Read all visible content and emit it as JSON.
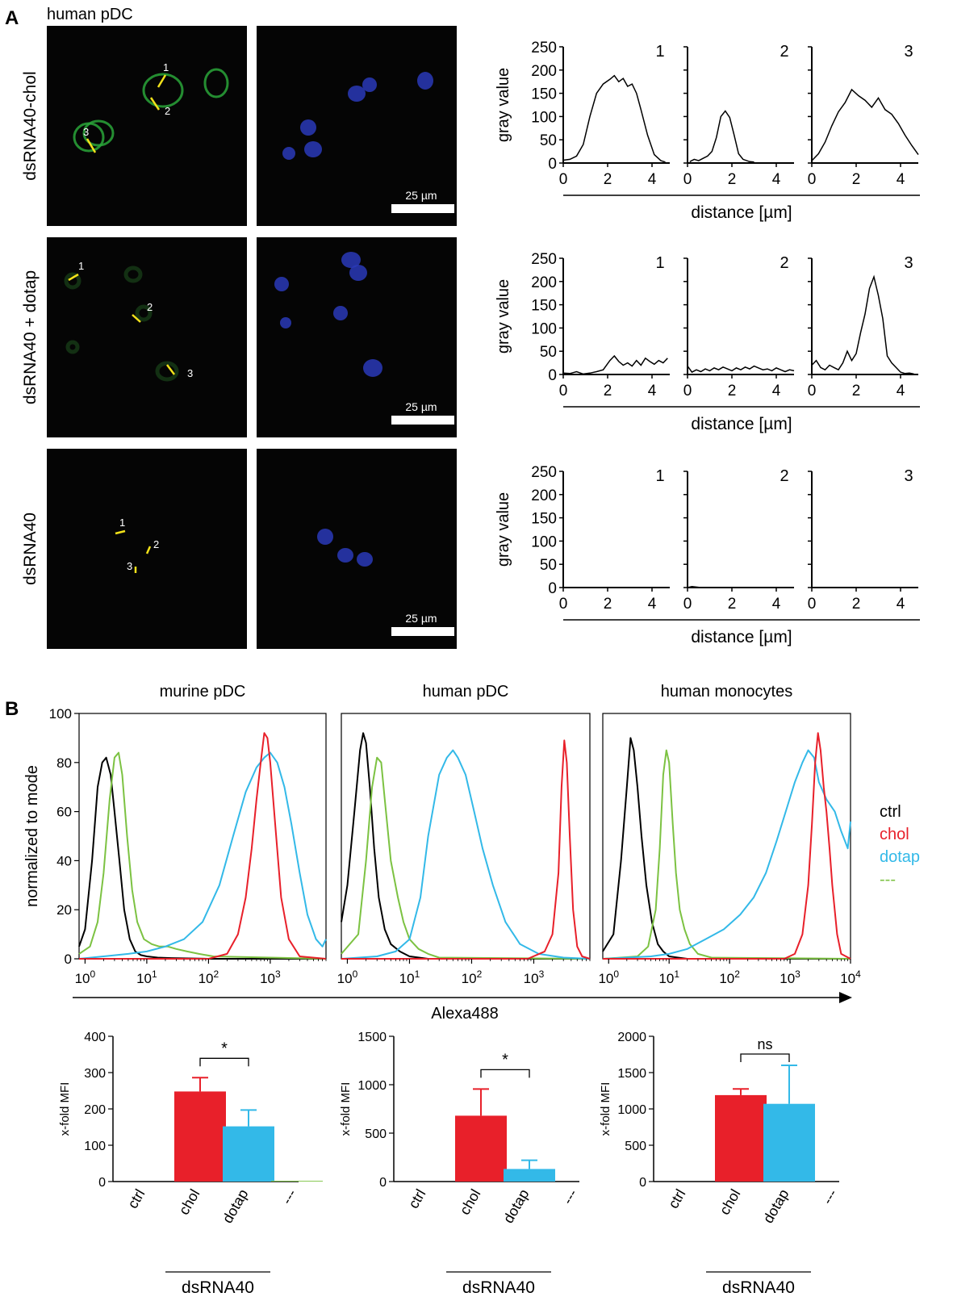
{
  "panel_a": {
    "letter": "A",
    "cell_type": "human pDC",
    "scale_label": "25 µm",
    "rows": [
      {
        "label": "dsRNA40-chol",
        "line_labels": [
          "1",
          "2",
          "3"
        ]
      },
      {
        "label": "dsRNA40 + dotap",
        "line_labels": [
          "1",
          "2",
          "3"
        ]
      },
      {
        "label": "dsRNA40",
        "line_labels": [
          "1",
          "2",
          "3"
        ]
      }
    ],
    "profile_ylabel": "gray value",
    "profile_xlabel": "distance [µm]",
    "profile_yticks": [
      "0",
      "50",
      "100",
      "150",
      "200",
      "250"
    ],
    "profile_xticks": [
      "0",
      "2",
      "4"
    ]
  },
  "panel_b": {
    "letter": "B",
    "hist_titles": [
      "murine pDC",
      "human pDC",
      "human monocytes"
    ],
    "hist_ylabel": "normalized to mode",
    "hist_xlabel": "Alexa488",
    "hist_yticks": [
      "0",
      "20",
      "40",
      "60",
      "80",
      "100"
    ],
    "legend": [
      {
        "label": "ctrl",
        "color": "#000000"
      },
      {
        "label": "chol",
        "color": "#e8202a"
      },
      {
        "label": "dotap",
        "color": "#33b9e8"
      },
      {
        "label": "---",
        "color": "#7cc242"
      }
    ],
    "bar_ylabel": "x-fold MFI",
    "bar_group_label": "dsRNA40"
  },
  "chart_data": [
    {
      "type": "line",
      "title": "1",
      "row": "dsRNA40-chol",
      "xlabel": "distance [µm]",
      "ylabel": "gray value",
      "xlim": [
        0,
        4.8
      ],
      "ylim": [
        0,
        250
      ],
      "x": [
        0,
        0.3,
        0.6,
        0.9,
        1.2,
        1.5,
        1.8,
        2.1,
        2.3,
        2.5,
        2.7,
        2.9,
        3.1,
        3.3,
        3.5,
        3.8,
        4.1,
        4.4,
        4.6
      ],
      "y": [
        6,
        8,
        15,
        40,
        100,
        150,
        170,
        180,
        188,
        175,
        182,
        165,
        170,
        150,
        115,
        60,
        18,
        5,
        2
      ]
    },
    {
      "type": "line",
      "title": "2",
      "row": "dsRNA40-chol",
      "xlabel": "distance [µm]",
      "ylabel": "gray value",
      "xlim": [
        0,
        4.8
      ],
      "ylim": [
        0,
        250
      ],
      "x": [
        0.1,
        0.3,
        0.5,
        0.7,
        0.9,
        1.1,
        1.3,
        1.5,
        1.7,
        1.9,
        2.1,
        2.3,
        2.5,
        2.8,
        3.0
      ],
      "y": [
        3,
        8,
        5,
        10,
        15,
        25,
        55,
        100,
        112,
        98,
        60,
        20,
        8,
        3,
        2
      ]
    },
    {
      "type": "line",
      "title": "3",
      "row": "dsRNA40-chol",
      "xlabel": "distance [µm]",
      "ylabel": "gray value",
      "xlim": [
        0,
        4.8
      ],
      "ylim": [
        0,
        250
      ],
      "x": [
        0,
        0.3,
        0.6,
        0.9,
        1.2,
        1.5,
        1.8,
        2.1,
        2.4,
        2.7,
        3.0,
        3.3,
        3.6,
        3.9,
        4.2,
        4.5,
        4.8
      ],
      "y": [
        5,
        20,
        45,
        80,
        110,
        130,
        158,
        145,
        135,
        120,
        140,
        115,
        105,
        85,
        60,
        38,
        18
      ]
    },
    {
      "type": "line",
      "title": "1",
      "row": "dsRNA40 + dotap",
      "xlabel": "distance [µm]",
      "ylabel": "gray value",
      "xlim": [
        0,
        4.8
      ],
      "ylim": [
        0,
        250
      ],
      "x": [
        0,
        0.3,
        0.6,
        0.9,
        1.2,
        1.5,
        1.8,
        2.1,
        2.3,
        2.5,
        2.7,
        2.9,
        3.1,
        3.3,
        3.5,
        3.7,
        3.9,
        4.1,
        4.3,
        4.5,
        4.7
      ],
      "y": [
        3,
        2,
        6,
        1,
        3,
        6,
        10,
        30,
        40,
        28,
        20,
        25,
        18,
        30,
        20,
        35,
        28,
        22,
        30,
        25,
        35
      ]
    },
    {
      "type": "line",
      "title": "2",
      "row": "dsRNA40 + dotap",
      "xlabel": "distance [µm]",
      "ylabel": "gray value",
      "xlim": [
        0,
        4.8
      ],
      "ylim": [
        0,
        250
      ],
      "x": [
        0,
        0.2,
        0.4,
        0.6,
        0.8,
        1.0,
        1.2,
        1.4,
        1.6,
        1.8,
        2.0,
        2.2,
        2.4,
        2.6,
        2.8,
        3.0,
        3.2,
        3.4,
        3.6,
        3.8,
        4.0,
        4.2,
        4.4,
        4.6,
        4.8
      ],
      "y": [
        18,
        5,
        10,
        6,
        12,
        8,
        14,
        10,
        16,
        12,
        8,
        14,
        10,
        16,
        12,
        18,
        14,
        10,
        12,
        8,
        14,
        10,
        6,
        10,
        8
      ]
    },
    {
      "type": "line",
      "title": "3",
      "row": "dsRNA40 + dotap",
      "xlabel": "distance [µm]",
      "ylabel": "gray value",
      "xlim": [
        0,
        4.8
      ],
      "ylim": [
        0,
        250
      ],
      "x": [
        0,
        0.2,
        0.4,
        0.6,
        0.8,
        1.0,
        1.2,
        1.4,
        1.6,
        1.8,
        2.0,
        2.2,
        2.4,
        2.6,
        2.8,
        3.0,
        3.2,
        3.4,
        3.6,
        3.8,
        4.0,
        4.2,
        4.4,
        4.6
      ],
      "y": [
        20,
        30,
        15,
        10,
        20,
        15,
        10,
        25,
        50,
        30,
        45,
        90,
        130,
        185,
        210,
        170,
        120,
        40,
        25,
        15,
        5,
        2,
        3,
        1
      ]
    },
    {
      "type": "line",
      "title": "1",
      "row": "dsRNA40",
      "xlabel": "distance [µm]",
      "ylabel": "gray value",
      "xlim": [
        0,
        4.8
      ],
      "ylim": [
        0,
        250
      ],
      "x": [
        0,
        4.7
      ],
      "y": [
        0,
        0
      ]
    },
    {
      "type": "line",
      "title": "2",
      "row": "dsRNA40",
      "xlabel": "distance [µm]",
      "ylabel": "gray value",
      "xlim": [
        0,
        4.8
      ],
      "ylim": [
        0,
        250
      ],
      "x": [
        0,
        0.2,
        0.4,
        0.6,
        4.7
      ],
      "y": [
        0,
        2,
        1,
        0,
        0
      ]
    },
    {
      "type": "line",
      "title": "3",
      "row": "dsRNA40",
      "xlabel": "distance [µm]",
      "ylabel": "gray value",
      "xlim": [
        0,
        4.8
      ],
      "ylim": [
        0,
        250
      ],
      "x": [
        0,
        4.7
      ],
      "y": [
        0,
        0
      ]
    },
    {
      "type": "line",
      "title": "murine pDC",
      "xlabel": "Alexa488",
      "ylabel": "normalized to mode",
      "x_scale": "log",
      "xlim": [
        0.8,
        8000
      ],
      "ylim": [
        0,
        100
      ],
      "series": [
        {
          "name": "ctrl",
          "color": "#000000",
          "x": [
            0.8,
            1.0,
            1.3,
            1.6,
            1.9,
            2.2,
            2.6,
            3.0,
            3.6,
            4.3,
            5.3,
            6.5,
            8,
            10,
            15,
            25,
            100,
            8000
          ],
          "y": [
            5,
            12,
            40,
            70,
            80,
            82,
            75,
            60,
            40,
            20,
            8,
            3,
            1.5,
            1,
            0.5,
            0.3,
            0,
            0
          ]
        },
        {
          "name": "---",
          "color": "#7cc242",
          "x": [
            0.8,
            1.2,
            1.6,
            2.0,
            2.5,
            3.0,
            3.5,
            4.0,
            4.8,
            5.8,
            7,
            9,
            12,
            16,
            22,
            30,
            45,
            70,
            120,
            8000
          ],
          "y": [
            2,
            5,
            15,
            35,
            65,
            82,
            84,
            75,
            50,
            28,
            15,
            8,
            6,
            5,
            5,
            4,
            3,
            2,
            1,
            0
          ]
        },
        {
          "name": "dotap",
          "color": "#33b9e8",
          "x": [
            0.8,
            2,
            5,
            10,
            20,
            40,
            80,
            150,
            250,
            400,
            600,
            800,
            1000,
            1300,
            1700,
            2200,
            3000,
            4000,
            5500,
            7000,
            8000
          ],
          "y": [
            0,
            1,
            2,
            3,
            5,
            8,
            15,
            30,
            50,
            68,
            78,
            82,
            84,
            80,
            70,
            55,
            35,
            18,
            8,
            5,
            8
          ]
        },
        {
          "name": "chol",
          "color": "#e8202a",
          "x": [
            0.8,
            100,
            200,
            300,
            400,
            500,
            600,
            700,
            800,
            900,
            1000,
            1200,
            1500,
            2000,
            3000,
            8000
          ],
          "y": [
            0,
            0,
            2,
            10,
            25,
            45,
            65,
            80,
            92,
            90,
            80,
            55,
            25,
            8,
            1,
            0
          ]
        }
      ]
    },
    {
      "type": "line",
      "title": "human pDC",
      "xlabel": "Alexa488",
      "ylabel": "normalized to mode",
      "x_scale": "log",
      "xlim": [
        0.8,
        8000
      ],
      "ylim": [
        0,
        100
      ],
      "series": [
        {
          "name": "ctrl",
          "color": "#000000",
          "x": [
            0.8,
            1.0,
            1.3,
            1.6,
            1.8,
            2.0,
            2.3,
            2.7,
            3.2,
            4.0,
            5,
            7,
            10,
            20,
            8000
          ],
          "y": [
            15,
            30,
            60,
            85,
            92,
            88,
            70,
            45,
            25,
            12,
            6,
            3,
            1,
            0,
            0
          ]
        },
        {
          "name": "---",
          "color": "#7cc242",
          "x": [
            0.8,
            1.5,
            2.0,
            2.5,
            3.0,
            3.5,
            4.0,
            5.0,
            6.5,
            8,
            10,
            14,
            20,
            30,
            8000
          ],
          "y": [
            2,
            10,
            40,
            70,
            82,
            80,
            65,
            40,
            25,
            15,
            8,
            4,
            2,
            0.5,
            0
          ]
        },
        {
          "name": "dotap",
          "color": "#33b9e8",
          "x": [
            0.8,
            3,
            6,
            10,
            15,
            20,
            30,
            40,
            50,
            60,
            80,
            110,
            150,
            220,
            350,
            600,
            1200,
            3000,
            8000
          ],
          "y": [
            0,
            1,
            3,
            8,
            25,
            50,
            75,
            82,
            85,
            82,
            75,
            60,
            45,
            30,
            15,
            6,
            2,
            0.5,
            0
          ]
        },
        {
          "name": "chol",
          "color": "#e8202a",
          "x": [
            0.8,
            800,
            1500,
            2000,
            2500,
            2800,
            3100,
            3400,
            3800,
            4300,
            5000,
            6000,
            8000
          ],
          "y": [
            0,
            0,
            3,
            10,
            35,
            70,
            89,
            80,
            50,
            20,
            5,
            1,
            0
          ]
        }
      ]
    },
    {
      "type": "line",
      "title": "human monocytes",
      "xlabel": "Alexa488",
      "ylabel": "normalized to mode",
      "x_scale": "log",
      "xlim": [
        0.8,
        10000
      ],
      "ylim": [
        0,
        100
      ],
      "series": [
        {
          "name": "ctrl",
          "color": "#000000",
          "x": [
            0.8,
            1.2,
            1.6,
            2.0,
            2.3,
            2.6,
            3.0,
            3.5,
            4.2,
            5.2,
            6.5,
            8,
            10,
            14,
            20,
            10000
          ],
          "y": [
            3,
            10,
            40,
            70,
            90,
            85,
            70,
            50,
            30,
            15,
            6,
            3,
            1,
            0.5,
            0,
            0
          ]
        },
        {
          "name": "---",
          "color": "#7cc242",
          "x": [
            0.8,
            3,
            4.5,
            6,
            7,
            8,
            9,
            10,
            11.5,
            13,
            15,
            18,
            22,
            30,
            50,
            10000
          ],
          "y": [
            0,
            1,
            5,
            20,
            45,
            75,
            85,
            80,
            55,
            35,
            20,
            12,
            6,
            2,
            0.5,
            0
          ]
        },
        {
          "name": "dotap",
          "color": "#33b9e8",
          "x": [
            0.8,
            5,
            10,
            20,
            40,
            80,
            150,
            250,
            400,
            600,
            900,
            1200,
            1600,
            2000,
            2500,
            3000,
            4000,
            5500,
            7000,
            9000,
            10000
          ],
          "y": [
            0,
            1,
            2,
            4,
            8,
            12,
            18,
            25,
            35,
            48,
            62,
            72,
            80,
            85,
            82,
            72,
            65,
            60,
            52,
            45,
            56
          ]
        },
        {
          "name": "chol",
          "color": "#e8202a",
          "x": [
            0.8,
            800,
            1200,
            1600,
            2000,
            2300,
            2600,
            2900,
            3200,
            3600,
            4000,
            4500,
            5000,
            6000,
            7000,
            10000
          ],
          "y": [
            0,
            0,
            2,
            10,
            30,
            55,
            80,
            92,
            85,
            70,
            60,
            45,
            30,
            10,
            2,
            0
          ]
        }
      ]
    },
    {
      "type": "bar",
      "categories": [
        "ctrl",
        "chol",
        "dotap",
        "---"
      ],
      "ylabel": "x-fold MFI",
      "xlabel": "dsRNA40",
      "ylim": [
        0,
        400
      ],
      "values": [
        0,
        248,
        152,
        2
      ],
      "errors": [
        0,
        38,
        45,
        0
      ],
      "colors": [
        "#000000",
        "#e8202a",
        "#33b9e8",
        "#7cc242"
      ],
      "yticks": [
        0,
        100,
        200,
        300,
        400
      ],
      "significance": {
        "between": [
          "chol",
          "dotap"
        ],
        "label": "*"
      }
    },
    {
      "type": "bar",
      "categories": [
        "ctrl",
        "chol",
        "dotap",
        "---"
      ],
      "ylabel": "x-fold MFI",
      "xlabel": "dsRNA40",
      "ylim": [
        0,
        1500
      ],
      "values": [
        0,
        680,
        130,
        0
      ],
      "errors": [
        0,
        275,
        90,
        0
      ],
      "colors": [
        "#000000",
        "#e8202a",
        "#33b9e8",
        "#7cc242"
      ],
      "yticks": [
        0,
        500,
        1000,
        1500
      ],
      "significance": {
        "between": [
          "chol",
          "dotap"
        ],
        "label": "*"
      }
    },
    {
      "type": "bar",
      "categories": [
        "ctrl",
        "chol",
        "dotap",
        "---"
      ],
      "ylabel": "x-fold MFI",
      "xlabel": "dsRNA40",
      "ylim": [
        0,
        2000
      ],
      "values": [
        0,
        1190,
        1070,
        0
      ],
      "errors": [
        0,
        85,
        530,
        0
      ],
      "colors": [
        "#000000",
        "#e8202a",
        "#33b9e8",
        "#7cc242"
      ],
      "yticks": [
        0,
        500,
        1000,
        1500,
        2000
      ],
      "significance": {
        "between": [
          "chol",
          "dotap"
        ],
        "label": "ns"
      }
    }
  ]
}
